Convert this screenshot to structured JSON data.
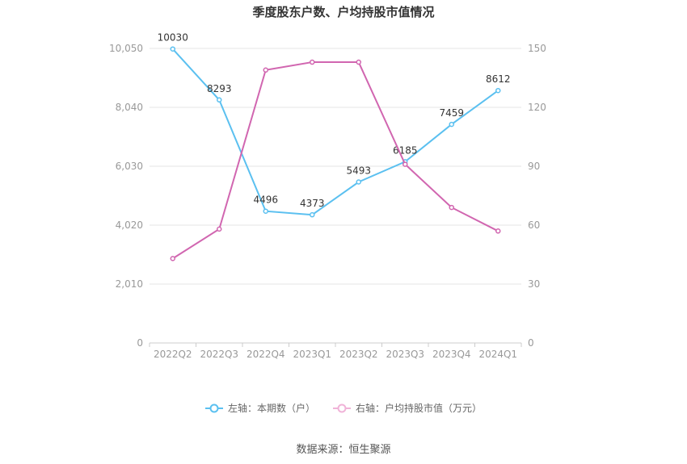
{
  "chart_data": {
    "type": "line",
    "title": "季度股东户数、户均持股市值情况",
    "categories": [
      "2022Q2",
      "2022Q3",
      "2022Q4",
      "2023Q1",
      "2023Q2",
      "2023Q3",
      "2023Q4",
      "2024Q1"
    ],
    "y_left": {
      "ticks": [
        "0",
        "2,010",
        "4,020",
        "6,030",
        "8,040",
        "10,050"
      ],
      "lim": [
        0,
        10050
      ]
    },
    "y_right": {
      "ticks": [
        "0",
        "30",
        "60",
        "90",
        "120",
        "150"
      ],
      "lim": [
        0,
        150
      ]
    },
    "series": [
      {
        "name": "左轴：本期数（户）",
        "axis": "left",
        "color": "#5bc0f0",
        "values": [
          10030,
          8293,
          4496,
          4373,
          5493,
          6185,
          7459,
          8612
        ],
        "labels": [
          "10030",
          "8293",
          "4496",
          "4373",
          "5493",
          "6185",
          "7459",
          "8612"
        ]
      },
      {
        "name": "右轴：户均持股市值（万元）",
        "axis": "right",
        "color": "#d166b0",
        "values": [
          43,
          58,
          139,
          143,
          143,
          91,
          69,
          57
        ]
      }
    ],
    "legend_position": "bottom-center",
    "grid": true
  },
  "source": "数据来源：恒生聚源"
}
